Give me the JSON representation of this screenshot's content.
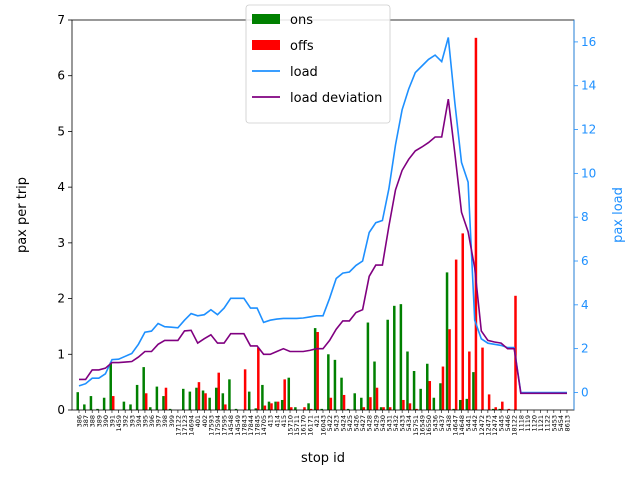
{
  "chart_data": {
    "type": "bar+line",
    "xlabel": "stop id",
    "ylabel_left": "pax per trip",
    "ylabel_right": "pax load",
    "ylim_left": [
      0,
      7
    ],
    "ylim_right": [
      -0.8,
      17
    ],
    "yticks_left": [
      "0",
      "1",
      "2",
      "3",
      "4",
      "5",
      "6",
      "7"
    ],
    "yticks_right": [
      "0",
      "2",
      "4",
      "6",
      "8",
      "10",
      "12",
      "14",
      "16"
    ],
    "legend_position": "top-center",
    "colors": {
      "ons": "#008000",
      "offs": "#ff0000",
      "load": "#1e90ff",
      "load_deviation": "#800080",
      "right_axis": "#1e90ff"
    },
    "legend": [
      "ons",
      "offs",
      "load",
      "load deviation"
    ],
    "categories": [
      "386",
      "387",
      "388",
      "389",
      "390",
      "391",
      "1459",
      "392",
      "393",
      "394",
      "395",
      "396",
      "397",
      "398",
      "399",
      "17122",
      "17123",
      "14694",
      "401",
      "402",
      "17593",
      "17594",
      "17595",
      "14548",
      "14549",
      "17843",
      "17844",
      "17845",
      "14705",
      "413",
      "414",
      "415",
      "15710",
      "15711",
      "16170",
      "16171",
      "421",
      "16043",
      "5422",
      "5423",
      "5424",
      "5425",
      "5426",
      "5427",
      "5428",
      "5429",
      "5430",
      "5431",
      "5432",
      "5433",
      "5434",
      "15751",
      "16549",
      "16550",
      "5436",
      "5437",
      "5438",
      "14647",
      "14648",
      "5441",
      "5442",
      "12472",
      "12473",
      "12474",
      "5445",
      "5446",
      "18122",
      "1118",
      "1119",
      "1120",
      "1121",
      "1122",
      "5453",
      "5454",
      "8613"
    ],
    "tick_labels": [
      "386",
      "387",
      "388",
      "389",
      "390",
      "391",
      "1459",
      "392",
      "393",
      "394",
      "395",
      "396",
      "397",
      "398",
      "399",
      "17122",
      "17123",
      "14694",
      "401",
      "402",
      "17593",
      "17594",
      "17595",
      "14548",
      "14549",
      "17843",
      "17844",
      "17845",
      "14705",
      "413",
      "414",
      "415",
      "15710",
      "15711",
      "16170",
      "16171",
      "421",
      "16043",
      "5422",
      "5423",
      "5424",
      "5425",
      "5426",
      "5427",
      "5428",
      "5429",
      "5430",
      "5431",
      "5432",
      "5433",
      "5434",
      "15751",
      "16549",
      "16550",
      "5436",
      "5437",
      "5438",
      "14647",
      "14648",
      "5441",
      "5442",
      "12472",
      "12473",
      "12474",
      "5445",
      "5446",
      "18122",
      "1118",
      "1119",
      "1120",
      "1121",
      "1122",
      "5453",
      "5454",
      "8613"
    ],
    "series": [
      {
        "name": "ons",
        "axis": "left",
        "kind": "bar",
        "values": [
          0.32,
          0.1,
          0.25,
          0.02,
          0.22,
          0.85,
          0.0,
          0.15,
          0.1,
          0.45,
          0.77,
          0.05,
          0.42,
          0.25,
          0.02,
          0.0,
          0.38,
          0.33,
          0.4,
          0.35,
          0.22,
          0.4,
          0.3,
          0.55,
          0.02,
          0.0,
          0.33,
          0.03,
          0.45,
          0.15,
          0.15,
          0.18,
          0.58,
          0.05,
          0.0,
          0.12,
          1.47,
          0.02,
          1.0,
          0.9,
          0.58,
          0.02,
          0.3,
          0.22,
          1.57,
          0.87,
          0.05,
          1.62,
          1.87,
          1.9,
          1.05,
          0.7,
          0.38,
          0.83,
          0.22,
          0.48,
          2.47,
          0.02,
          0.18,
          0.2,
          0.68,
          0.0,
          0.0,
          0.02,
          0.02,
          0.0,
          0.0,
          0.0,
          0.0,
          0.0,
          0.0,
          0.0,
          0.0,
          0.0,
          0.0
        ]
      },
      {
        "name": "offs",
        "axis": "left",
        "kind": "bar",
        "values": [
          0.0,
          0.0,
          0.0,
          0.0,
          0.0,
          0.25,
          0.0,
          0.0,
          0.0,
          0.0,
          0.3,
          0.0,
          0.0,
          0.4,
          0.0,
          0.0,
          0.0,
          0.0,
          0.5,
          0.3,
          0.0,
          0.67,
          0.1,
          0.0,
          0.0,
          0.73,
          0.0,
          1.12,
          0.08,
          0.12,
          0.15,
          0.55,
          0.05,
          0.0,
          0.05,
          0.02,
          1.4,
          0.0,
          0.22,
          0.0,
          0.27,
          0.0,
          0.0,
          0.05,
          0.23,
          0.4,
          0.05,
          0.05,
          0.0,
          0.18,
          0.12,
          0.02,
          0.0,
          0.52,
          0.0,
          0.78,
          1.45,
          2.7,
          3.17,
          1.05,
          6.68,
          1.12,
          0.28,
          0.05,
          0.15,
          0.02,
          2.05,
          0.0,
          0.0,
          0.0,
          0.0,
          0.0,
          0.0,
          0.0,
          0.0
        ]
      },
      {
        "name": "load",
        "axis": "right",
        "kind": "line",
        "values": [
          0.3,
          0.4,
          0.65,
          0.65,
          0.85,
          1.5,
          1.52,
          1.65,
          1.78,
          2.2,
          2.75,
          2.8,
          3.15,
          3.0,
          2.98,
          2.95,
          3.3,
          3.6,
          3.5,
          3.55,
          3.78,
          3.55,
          3.85,
          4.3,
          4.3,
          4.3,
          3.85,
          3.85,
          3.2,
          3.3,
          3.35,
          3.38,
          3.38,
          3.38,
          3.4,
          3.45,
          3.5,
          3.5,
          4.3,
          5.2,
          5.45,
          5.5,
          5.8,
          6.0,
          7.3,
          7.75,
          7.85,
          9.3,
          11.3,
          12.9,
          13.85,
          14.6,
          14.9,
          15.2,
          15.4,
          15.1,
          16.2,
          13.2,
          10.5,
          9.6,
          3.3,
          2.45,
          2.25,
          2.2,
          2.15,
          2.05,
          2.05,
          0.0,
          0.0,
          0.0,
          0.0,
          0.0,
          0.0,
          0.0,
          0.0
        ]
      },
      {
        "name": "load deviation",
        "axis": "left",
        "kind": "line",
        "values": [
          0.55,
          0.55,
          0.72,
          0.72,
          0.75,
          0.85,
          0.85,
          0.86,
          0.87,
          0.95,
          1.05,
          1.05,
          1.18,
          1.25,
          1.25,
          1.25,
          1.42,
          1.43,
          1.2,
          1.28,
          1.35,
          1.2,
          1.2,
          1.37,
          1.37,
          1.37,
          1.15,
          1.15,
          1.0,
          1.0,
          1.05,
          1.1,
          1.05,
          1.05,
          1.05,
          1.07,
          1.1,
          1.1,
          1.25,
          1.45,
          1.6,
          1.6,
          1.75,
          1.8,
          2.4,
          2.6,
          2.6,
          3.3,
          3.95,
          4.3,
          4.5,
          4.65,
          4.72,
          4.8,
          4.9,
          4.9,
          5.58,
          4.6,
          3.55,
          3.2,
          2.55,
          1.42,
          1.25,
          1.22,
          1.2,
          1.1,
          1.1,
          0.3,
          0.3,
          0.3,
          0.3,
          0.3,
          0.3,
          0.3,
          0.3
        ]
      }
    ]
  }
}
